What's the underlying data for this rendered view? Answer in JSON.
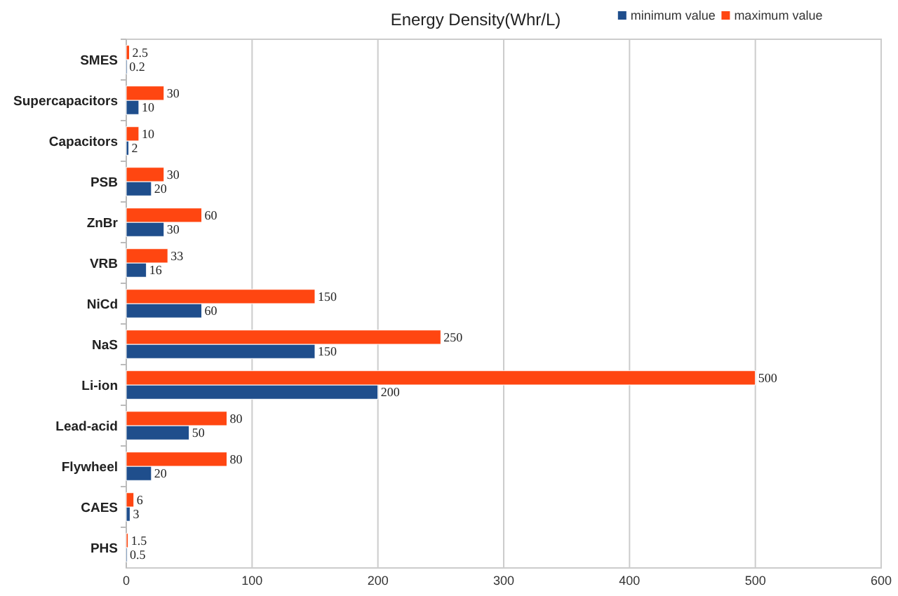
{
  "chart_data": {
    "type": "bar",
    "orientation": "horizontal",
    "title": "Energy Density(Whr/L)",
    "categories": [
      "SMES",
      "Supercapacitors",
      "Capacitors",
      "PSB",
      "ZnBr",
      "VRB",
      "NiCd",
      "NaS",
      "Li-ion",
      "Lead-acid",
      "Flywheel",
      "CAES",
      "PHS"
    ],
    "series": [
      {
        "name": "minimum value",
        "color": "#1f4e8c",
        "values": [
          0.2,
          10,
          2,
          20,
          30,
          16,
          60,
          150,
          200,
          50,
          20,
          3,
          0.5
        ]
      },
      {
        "name": "maximum value",
        "color": "#ff4611",
        "values": [
          2.5,
          30,
          10,
          30,
          60,
          33,
          150,
          250,
          500,
          80,
          80,
          6,
          1.5
        ]
      }
    ],
    "xlim": [
      0,
      600
    ],
    "xticks": [
      0,
      100,
      200,
      300,
      400,
      500,
      600
    ],
    "grid": "x",
    "legend": "top right",
    "data_labels": true
  }
}
